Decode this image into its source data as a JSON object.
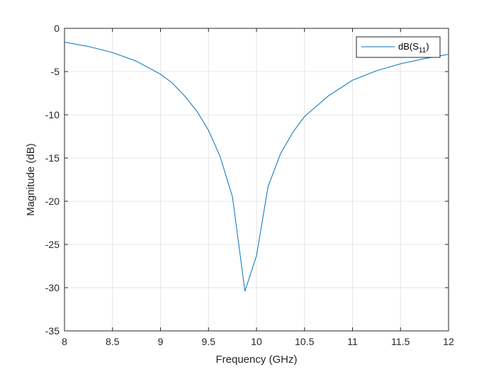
{
  "chart_data": {
    "type": "line",
    "title": "",
    "xlabel": "Frequency (GHz)",
    "ylabel": "Magnitude (dB)",
    "xlim": [
      8,
      12
    ],
    "ylim": [
      -35,
      0
    ],
    "x_ticks": [
      "8",
      "8.5",
      "9",
      "9.5",
      "10",
      "10.5",
      "11",
      "11.5",
      "12"
    ],
    "y_ticks": [
      "0",
      "-5",
      "-10",
      "-15",
      "-20",
      "-25",
      "-30",
      "-35"
    ],
    "grid": true,
    "legend_position": "top-right",
    "legend": {
      "prefix": "dB(S",
      "subscript": "11",
      "suffix": ")"
    },
    "colors": {
      "line": "#0072BD",
      "grid": "#e6e6e6",
      "axis": "#262626"
    },
    "series": [
      {
        "x": [
          8.0,
          8.25,
          8.5,
          8.75,
          9.0,
          9.12,
          9.25,
          9.38,
          9.5,
          9.62,
          9.75,
          9.88,
          10.0,
          10.12,
          10.25,
          10.38,
          10.5,
          10.75,
          11.0,
          11.25,
          11.5,
          11.75,
          12.0
        ],
        "y": [
          -1.6,
          -2.1,
          -2.8,
          -3.8,
          -5.3,
          -6.3,
          -7.8,
          -9.6,
          -11.8,
          -14.8,
          -19.5,
          -30.4,
          -26.3,
          -18.3,
          -14.5,
          -12.0,
          -10.2,
          -7.8,
          -6.0,
          -4.9,
          -4.1,
          -3.5,
          -3.0
        ]
      }
    ]
  }
}
